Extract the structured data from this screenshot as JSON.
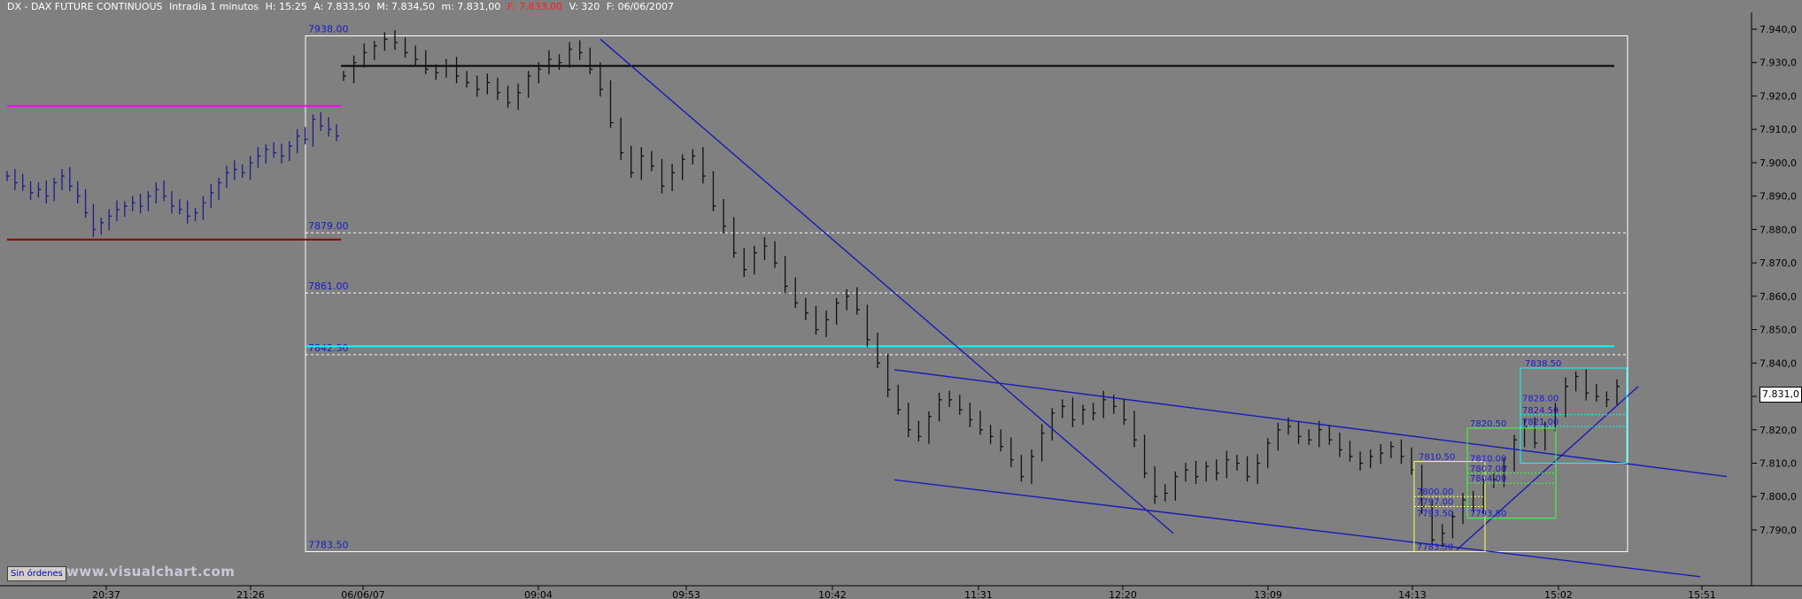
{
  "header": {
    "symbol": "DX - DAX FUTURE CONTINUOUS",
    "interval": "Intradia 1 minutos",
    "high": "H: 15:25",
    "last": "A: 7.833,50",
    "max": "M: 7.834,50",
    "min": "m: 7.831,00",
    "close_label": "F:",
    "close": "7.833,00",
    "volume": "V: 320",
    "date": "F: 06/06/2007"
  },
  "footer": {
    "orders_label": "Sin órdenes",
    "watermark": "www.visualchart.com"
  },
  "current_price": "7.831,0",
  "colors": {
    "background": "#808080",
    "bars_prev": "#1c1c8c",
    "bars_today": "#101010",
    "trend_line": "#1a1ab8",
    "magenta": "#ff00ff",
    "dark_red": "#8b0000",
    "cyan": "#00ffff",
    "resistance": "#000000",
    "fib_box_yellow": "#ffff66",
    "fib_box_green": "#40ff40",
    "fib_box_cyan": "#00ffff"
  },
  "chart_data": {
    "type": "bar",
    "title": "DX - DAX FUTURE CONTINUOUS Intradia 1 minutos",
    "ylim": [
      7782,
      7944
    ],
    "y_ticks": [
      "7.940,0",
      "7.930,0",
      "7.920,0",
      "7.910,0",
      "7.900,0",
      "7.890,0",
      "7.880,0",
      "7.870,0",
      "7.860,0",
      "7.850,0",
      "7.840,0",
      "7.830,0",
      "7.820,0",
      "7.810,0",
      "7.800,0",
      "7.790,0"
    ],
    "y_tick_values": [
      7940,
      7930,
      7920,
      7910,
      7900,
      7890,
      7880,
      7870,
      7860,
      7850,
      7840,
      7830,
      7820,
      7810,
      7800,
      7790
    ],
    "x_ticks": [
      "20:37",
      "21:26",
      "06/06/07",
      "09:04",
      "09:53",
      "10:42",
      "11:31",
      "12:20",
      "13:09",
      "14:13",
      "15:02",
      "15:51"
    ],
    "fib_levels": [
      {
        "label": "7938.00",
        "value": 7938.0
      },
      {
        "label": "7879.00",
        "value": 7879.0
      },
      {
        "label": "7861.00",
        "value": 7861.0
      },
      {
        "label": "7842.50",
        "value": 7842.5
      },
      {
        "label": "7783.50",
        "value": 7783.5
      }
    ],
    "fib_small_labels": [
      "7838.50",
      "7828.00",
      "7824.50",
      "7821.00",
      "7820.50",
      "7810.50",
      "7810.00",
      "7807.00",
      "7804.00",
      "7800.00",
      "7797.00",
      "7793.50",
      "7793.50",
      "7783.50"
    ],
    "horizontal_lines": [
      {
        "name": "resistance",
        "value": 7929
      },
      {
        "name": "cyan-level",
        "value": 7845
      },
      {
        "name": "prev-high-magenta",
        "value": 7917
      },
      {
        "name": "prev-low-darkred",
        "value": 7877
      }
    ],
    "series": [
      {
        "values_prev": [
          7896,
          7894,
          7893,
          7891,
          7892,
          7890,
          7894,
          7896,
          7893,
          7890,
          7885,
          7880,
          7882,
          7884,
          7886,
          7887,
          7888,
          7887,
          7890,
          7892,
          7890,
          7887,
          7886,
          7884,
          7885,
          7888,
          7891,
          7894,
          7897,
          7898,
          7897,
          7900,
          7902,
          7904,
          7903,
          7902,
          7905,
          7908,
          7907,
          7913,
          7911,
          7910,
          7908
        ]
      },
      {
        "values_today": [
          7926,
          7930,
          7933,
          7935,
          7937,
          7936,
          7933,
          7931,
          7928,
          7927,
          7929,
          7926,
          7924,
          7922,
          7924,
          7921,
          7918,
          7921,
          7926,
          7928,
          7931,
          7930,
          7934,
          7933,
          7928,
          7922,
          7912,
          7903,
          7897,
          7902,
          7899,
          7893,
          7897,
          7901,
          7902,
          7896,
          7887,
          7881,
          7873,
          7868,
          7873,
          7875,
          7870,
          7863,
          7858,
          7855,
          7850,
          7853,
          7858,
          7860,
          7856,
          7847,
          7840,
          7832,
          7826,
          7820,
          7818,
          7824,
          7829,
          7829,
          7826,
          7823,
          7820,
          7818,
          7815,
          7811,
          7806,
          7812,
          7819,
          7825,
          7827,
          7823,
          7826,
          7825,
          7829,
          7827,
          7823,
          7817,
          7807,
          7800,
          7801,
          7806,
          7808,
          7806,
          7809,
          7807,
          7811,
          7810,
          7806,
          7810,
          7816,
          7820,
          7821,
          7818,
          7817,
          7820,
          7817,
          7814,
          7812,
          7810,
          7812,
          7813,
          7815,
          7812,
          7808,
          7797,
          7787,
          7789,
          7794,
          7799,
          7797,
          7804,
          7805,
          7809,
          7817,
          7821,
          7816,
          7821,
          7826,
          7833,
          7836,
          7831,
          7830,
          7829,
          7833
        ]
      }
    ]
  }
}
